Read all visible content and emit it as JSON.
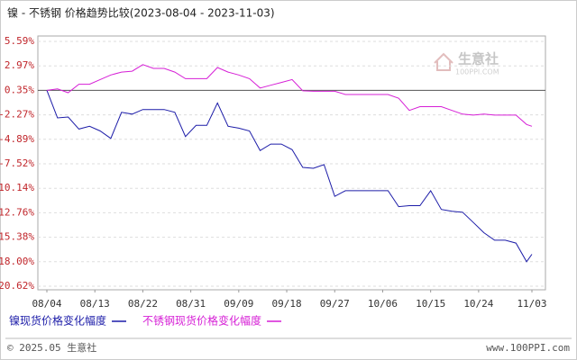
{
  "chart_data": {
    "type": "line",
    "title": "镍 - 不锈钢 价格趋势比较(2023-08-04 - 2023-11-03)",
    "watermark": {
      "name": "生意社",
      "site": "100PPI.COM"
    },
    "footer": {
      "left": "© 2025.05 生意社",
      "right": "www.100PPI.com"
    },
    "x": [
      "08/04",
      "08/06",
      "08/08",
      "08/10",
      "08/12",
      "08/14",
      "08/16",
      "08/18",
      "08/20",
      "08/22",
      "08/24",
      "08/26",
      "08/28",
      "08/30",
      "09/01",
      "09/03",
      "09/05",
      "09/07",
      "09/09",
      "09/11",
      "09/13",
      "09/15",
      "09/17",
      "09/19",
      "09/21",
      "09/23",
      "09/25",
      "09/27",
      "09/29",
      "10/01",
      "10/03",
      "10/05",
      "10/07",
      "10/09",
      "10/11",
      "10/13",
      "10/15",
      "10/17",
      "10/19",
      "10/21",
      "10/23",
      "10/25",
      "10/27",
      "10/29",
      "10/31",
      "11/02",
      "11/03"
    ],
    "xticks": [
      "08/04",
      "08/13",
      "08/22",
      "08/31",
      "09/09",
      "09/18",
      "09/27",
      "10/06",
      "10/15",
      "10/24",
      "11/03"
    ],
    "ylim": [
      -20.62,
      5.59
    ],
    "yticks": [
      {
        "value": 5.59,
        "label": "5.59%"
      },
      {
        "value": 2.97,
        "label": "2.97%"
      },
      {
        "value": 0.35,
        "label": "0.35%"
      },
      {
        "value": -2.27,
        "label": "-2.27%"
      },
      {
        "value": -4.89,
        "label": "-4.89%"
      },
      {
        "value": -7.52,
        "label": "-7.52%"
      },
      {
        "value": -10.14,
        "label": "-10.14%"
      },
      {
        "value": -12.76,
        "label": "-12.76%"
      },
      {
        "value": -15.38,
        "label": "-15.38%"
      },
      {
        "value": -18.0,
        "label": "-18.00%"
      },
      {
        "value": -20.62,
        "label": "-20.62%"
      }
    ],
    "grid": true,
    "series": [
      {
        "name": "镍现货价格变化幅度",
        "color": "#1c1ca8",
        "values": [
          0.35,
          -2.6,
          -2.5,
          -3.8,
          -3.5,
          -4.0,
          -4.8,
          -2.0,
          -2.2,
          -1.7,
          -1.7,
          -1.7,
          -2.0,
          -4.6,
          -3.4,
          -3.4,
          -1.0,
          -3.5,
          -3.7,
          -4.0,
          -6.1,
          -5.4,
          -5.4,
          -6.0,
          -7.9,
          -8.0,
          -7.6,
          -11.0,
          -10.4,
          -10.4,
          -10.4,
          -10.4,
          -10.4,
          -12.1,
          -12.0,
          -12.0,
          -10.4,
          -12.4,
          -12.6,
          -12.7,
          -13.8,
          -14.9,
          -15.7,
          -15.7,
          -16.0,
          -18.0,
          -17.2
        ]
      },
      {
        "name": "不锈钢现货价格变化幅度",
        "color": "#d61fd6",
        "values": [
          0.35,
          0.5,
          0.1,
          1.0,
          1.0,
          1.5,
          2.0,
          2.3,
          2.4,
          3.1,
          2.7,
          2.7,
          2.3,
          1.6,
          1.6,
          1.6,
          2.8,
          2.3,
          2.0,
          1.6,
          0.6,
          0.9,
          1.2,
          1.5,
          0.3,
          0.25,
          0.25,
          0.25,
          -0.1,
          -0.1,
          -0.1,
          -0.1,
          -0.1,
          -0.5,
          -1.8,
          -1.4,
          -1.4,
          -1.4,
          -1.8,
          -2.2,
          -2.3,
          -2.2,
          -2.3,
          -2.3,
          -2.3,
          -3.3,
          -3.5
        ]
      }
    ]
  }
}
